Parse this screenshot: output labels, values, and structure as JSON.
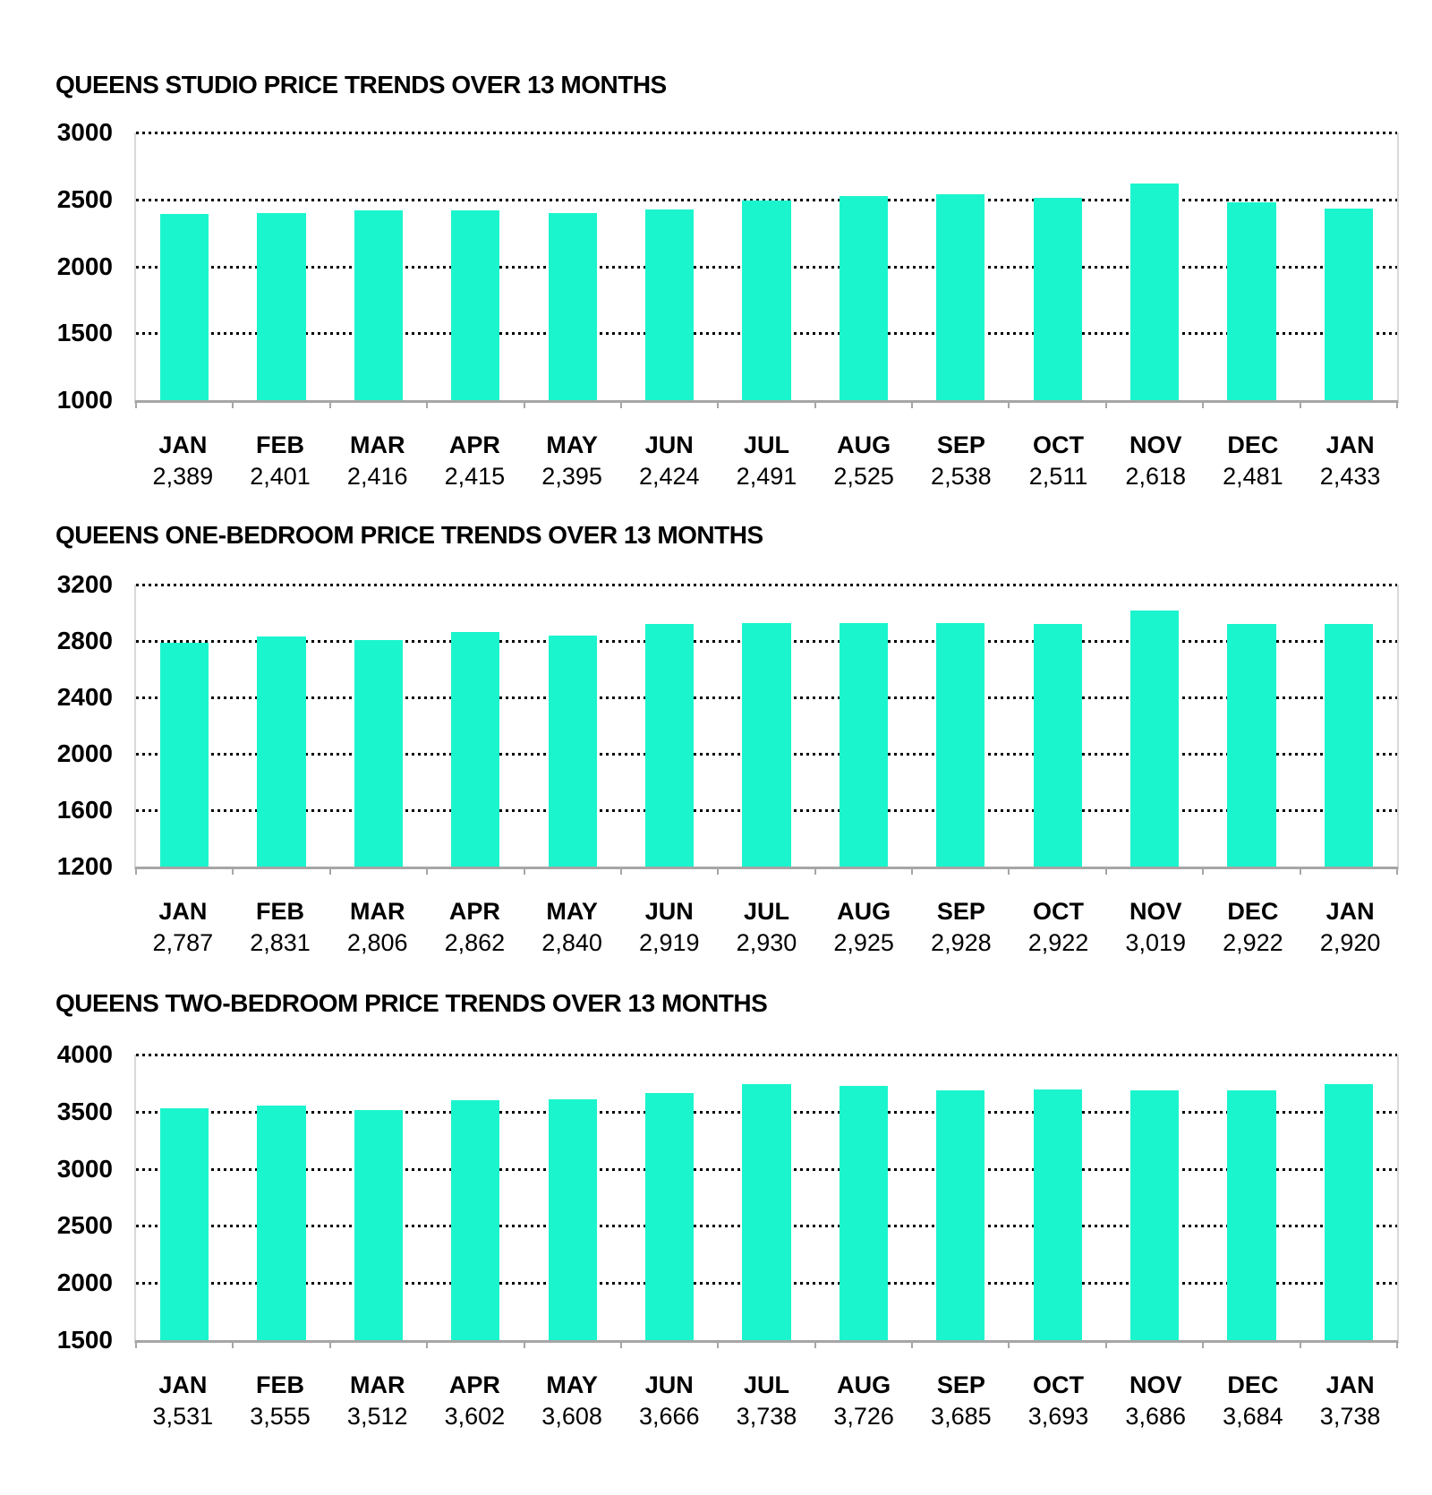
{
  "colors": {
    "bar": "#1BF5CD",
    "axis_line": "#a6a6a6",
    "gridline": "#000000",
    "plot_border": "#d9d9d9",
    "text": "#000000",
    "background": "#ffffff"
  },
  "chart_data": [
    {
      "type": "bar",
      "title": "QUEENS STUDIO PRICE TRENDS OVER 13 MONTHS",
      "categories": [
        "JAN",
        "FEB",
        "MAR",
        "APR",
        "MAY",
        "JUN",
        "JUL",
        "AUG",
        "SEP",
        "OCT",
        "NOV",
        "DEC",
        "JAN"
      ],
      "values": [
        2389,
        2401,
        2416,
        2415,
        2395,
        2424,
        2491,
        2525,
        2538,
        2511,
        2618,
        2481,
        2433
      ],
      "value_labels": [
        "2,389",
        "2,401",
        "2,416",
        "2,415",
        "2,395",
        "2,424",
        "2,491",
        "2,525",
        "2,538",
        "2,511",
        "2,618",
        "2,481",
        "2,433"
      ],
      "xlabel": "",
      "ylabel": "",
      "ylim": [
        1000,
        3000
      ],
      "y_ticks": [
        3000,
        2500,
        2000,
        1500,
        1000
      ],
      "grid": "horizontal-dotted",
      "legend": "none"
    },
    {
      "type": "bar",
      "title": "QUEENS ONE-BEDROOM PRICE TRENDS OVER 13 MONTHS",
      "categories": [
        "JAN",
        "FEB",
        "MAR",
        "APR",
        "MAY",
        "JUN",
        "JUL",
        "AUG",
        "SEP",
        "OCT",
        "NOV",
        "DEC",
        "JAN"
      ],
      "values": [
        2787,
        2831,
        2806,
        2862,
        2840,
        2919,
        2930,
        2925,
        2928,
        2922,
        3019,
        2922,
        2920
      ],
      "value_labels": [
        "2,787",
        "2,831",
        "2,806",
        "2,862",
        "2,840",
        "2,919",
        "2,930",
        "2,925",
        "2,928",
        "2,922",
        "3,019",
        "2,922",
        "2,920"
      ],
      "xlabel": "",
      "ylabel": "",
      "ylim": [
        1200,
        3200
      ],
      "y_ticks": [
        3200,
        2800,
        2400,
        2000,
        1600,
        1200
      ],
      "grid": "horizontal-dotted",
      "legend": "none"
    },
    {
      "type": "bar",
      "title": "QUEENS TWO-BEDROOM PRICE TRENDS OVER 13 MONTHS",
      "categories": [
        "JAN",
        "FEB",
        "MAR",
        "APR",
        "MAY",
        "JUN",
        "JUL",
        "AUG",
        "SEP",
        "OCT",
        "NOV",
        "DEC",
        "JAN"
      ],
      "values": [
        3531,
        3555,
        3512,
        3602,
        3608,
        3666,
        3738,
        3726,
        3685,
        3693,
        3686,
        3684,
        3738
      ],
      "value_labels": [
        "3,531",
        "3,555",
        "3,512",
        "3,602",
        "3,608",
        "3,666",
        "3,738",
        "3,726",
        "3,685",
        "3,693",
        "3,686",
        "3,684",
        "3,738"
      ],
      "xlabel": "",
      "ylabel": "",
      "ylim": [
        1500,
        4000
      ],
      "y_ticks": [
        4000,
        3500,
        3000,
        2500,
        2000,
        1500
      ],
      "grid": "horizontal-dotted",
      "legend": "none"
    }
  ]
}
